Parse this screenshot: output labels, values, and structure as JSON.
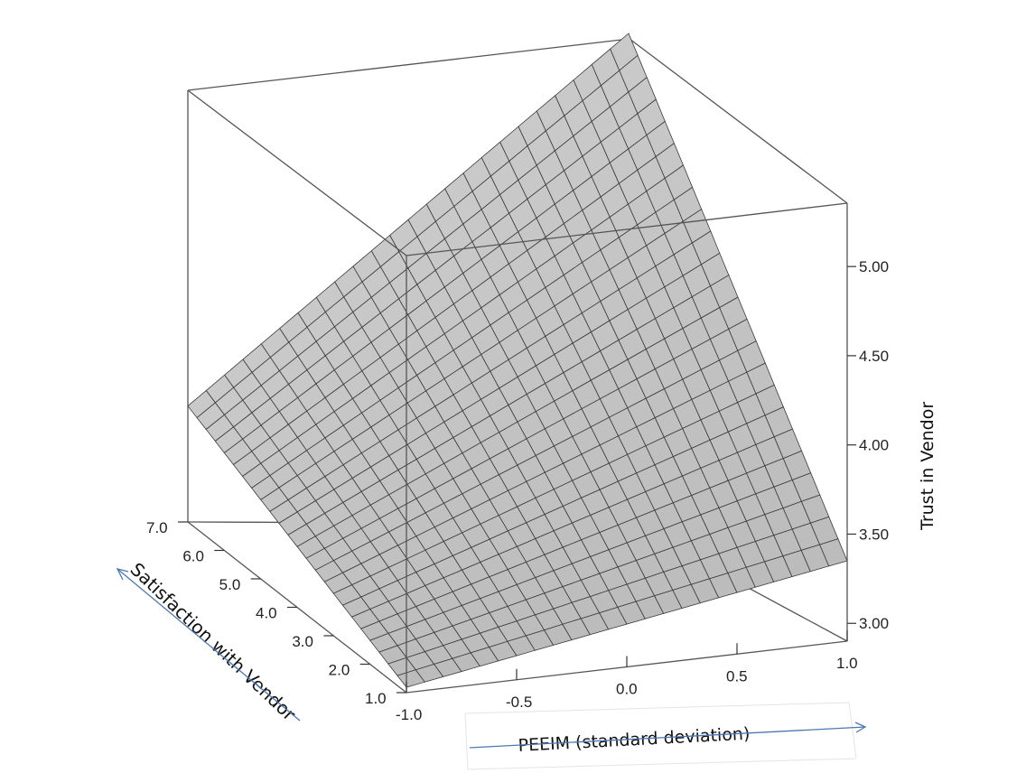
{
  "chart_data": {
    "type": "surface3d",
    "title": "",
    "xlabel": "PEEIM (standard deviation)",
    "ylabel": "Satisfaction with Vendor",
    "zlabel": "Trust  in  Vendor",
    "x_ticks": [
      "-1.0",
      "-0.5",
      "0.0",
      "0.5",
      "1.0"
    ],
    "y_ticks": [
      "1.0",
      "2.0",
      "3.0",
      "4.0",
      "5.0",
      "6.0",
      "7.0"
    ],
    "z_ticks": [
      "3.00",
      "3.50",
      "4.00",
      "4.50",
      "5.00"
    ],
    "xlim": [
      -1.0,
      1.0
    ],
    "ylim": [
      1.0,
      7.0
    ],
    "zlim": [
      2.9,
      5.35
    ],
    "corner_values": {
      "x_-1_y_1": 2.93,
      "x_1_y_1": 3.35,
      "x_-1_y_7": 3.55,
      "x_1_y_7": 5.35
    },
    "grid_divisions": 24,
    "surface_color": "#c4c4c4",
    "mesh_color": "#3a3a3a",
    "arrow_color": "#4a78b5"
  }
}
